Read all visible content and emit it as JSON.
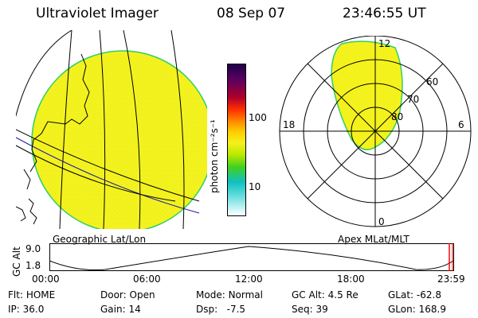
{
  "header": {
    "instrument": "Ultraviolet Imager",
    "date": "08 Sep 07",
    "time": "23:46:55 UT"
  },
  "colorbar": {
    "unit_label": "photon cm⁻²s⁻¹",
    "ticks": [
      "100",
      "10"
    ]
  },
  "polar": {
    "mlt_labels": [
      "12",
      "18",
      "6",
      "0"
    ],
    "lat_labels": [
      "60",
      "70",
      "80"
    ]
  },
  "panel_labels": {
    "left": "Geographic Lat/Lon",
    "right": "Apex MLat/MLT"
  },
  "altitude_plot": {
    "ylabel": "GC Alt",
    "yticks": [
      "9.0",
      "1.8"
    ],
    "xticks": [
      "00:00",
      "06:00",
      "12:00",
      "18:00",
      "23:59"
    ]
  },
  "info": {
    "row1": [
      {
        "label": "Flt:",
        "value": "HOME"
      },
      {
        "label": "Door:",
        "value": "Open"
      },
      {
        "label": "Mode:",
        "value": "Normal"
      },
      {
        "label": "GC Alt:",
        "value": "4.5 Re"
      },
      {
        "label": "GLat:",
        "value": "-62.8"
      }
    ],
    "row2": [
      {
        "label": "IP:",
        "value": "36.0"
      },
      {
        "label": "Gain:",
        "value": "14"
      },
      {
        "label": "Dsp:",
        "value": "-7.5"
      },
      {
        "label": "Seq:",
        "value": "39"
      },
      {
        "label": "GLon:",
        "value": "168.9"
      }
    ]
  },
  "colors": {
    "image_fill": "#f4f21c",
    "image_edge": "#2fcf66"
  }
}
